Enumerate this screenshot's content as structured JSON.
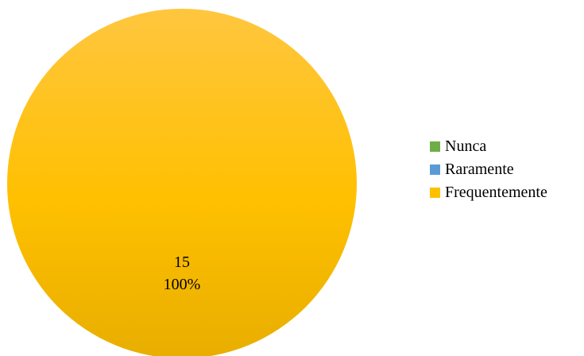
{
  "chart_data": {
    "type": "pie",
    "title": "",
    "categories": [
      "Nunca",
      "Raramente",
      "Frequentemente"
    ],
    "values": [
      0,
      0,
      15
    ],
    "percent_labels": [
      "0%",
      "0%",
      "100%"
    ],
    "value_labels": [
      "0",
      "0",
      "15"
    ],
    "colors": [
      "#70AD47",
      "#5B9BD5",
      "#FFC000"
    ],
    "legend_position": "right",
    "data_labels_shown": [
      "",
      "",
      "15\n100%"
    ]
  },
  "legend": {
    "items": [
      {
        "label": "Nunca",
        "color": "#70AD47"
      },
      {
        "label": "Raramente",
        "color": "#5B9BD5"
      },
      {
        "label": "Frequentemente",
        "color": "#FFC000"
      }
    ]
  },
  "slice_label": {
    "value": "15",
    "percent": "100%"
  }
}
